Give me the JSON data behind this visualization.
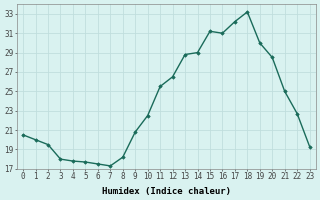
{
  "x": [
    0,
    1,
    2,
    3,
    4,
    5,
    6,
    7,
    8,
    9,
    10,
    11,
    12,
    13,
    14,
    15,
    16,
    17,
    18,
    19,
    20,
    21,
    22,
    23
  ],
  "y": [
    20.5,
    20.0,
    19.5,
    18.0,
    17.8,
    17.7,
    17.5,
    17.3,
    18.2,
    20.8,
    22.5,
    25.5,
    26.5,
    28.8,
    29.0,
    31.2,
    31.0,
    32.2,
    33.2,
    30.0,
    28.5,
    25.0,
    22.7,
    19.3
  ],
  "line_color": "#1a6b5a",
  "marker": "D",
  "markersize": 1.8,
  "linewidth": 1.0,
  "xlabel": "Humidex (Indice chaleur)",
  "xlabel_fontsize": 6.5,
  "xlabel_fontweight": "bold",
  "ylim": [
    17,
    34
  ],
  "xlim": [
    -0.5,
    23.5
  ],
  "yticks": [
    17,
    19,
    21,
    23,
    25,
    27,
    29,
    31,
    33
  ],
  "xticks": [
    0,
    1,
    2,
    3,
    4,
    5,
    6,
    7,
    8,
    9,
    10,
    11,
    12,
    13,
    14,
    15,
    16,
    17,
    18,
    19,
    20,
    21,
    22,
    23
  ],
  "bg_color": "#d9f2f0",
  "grid_color": "#c0dedd",
  "tick_fontsize": 5.5,
  "spine_color": "#888888"
}
